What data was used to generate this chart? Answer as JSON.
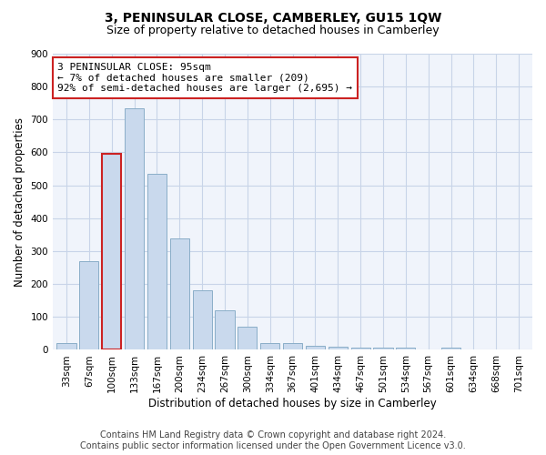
{
  "title": "3, PENINSULAR CLOSE, CAMBERLEY, GU15 1QW",
  "subtitle": "Size of property relative to detached houses in Camberley",
  "xlabel": "Distribution of detached houses by size in Camberley",
  "ylabel": "Number of detached properties",
  "categories": [
    "33sqm",
    "67sqm",
    "100sqm",
    "133sqm",
    "167sqm",
    "200sqm",
    "234sqm",
    "267sqm",
    "300sqm",
    "334sqm",
    "367sqm",
    "401sqm",
    "434sqm",
    "467sqm",
    "501sqm",
    "534sqm",
    "567sqm",
    "601sqm",
    "634sqm",
    "668sqm",
    "701sqm"
  ],
  "values": [
    20,
    270,
    595,
    735,
    535,
    340,
    180,
    120,
    70,
    22,
    20,
    12,
    10,
    8,
    7,
    6,
    0,
    8,
    0,
    0,
    0
  ],
  "bar_color": "#c9d9ed",
  "bar_edge_color": "#8aaec8",
  "highlight_bar_index": 2,
  "highlight_edge_color": "#cc2222",
  "annotation_line1": "3 PENINSULAR CLOSE: 95sqm",
  "annotation_line2": "← 7% of detached houses are smaller (209)",
  "annotation_line3": "92% of semi-detached houses are larger (2,695) →",
  "annotation_box_color": "white",
  "annotation_box_edge_color": "#cc2222",
  "ylim": [
    0,
    900
  ],
  "yticks": [
    0,
    100,
    200,
    300,
    400,
    500,
    600,
    700,
    800,
    900
  ],
  "footer_line1": "Contains HM Land Registry data © Crown copyright and database right 2024.",
  "footer_line2": "Contains public sector information licensed under the Open Government Licence v3.0.",
  "bg_color": "#f0f4fb",
  "grid_color": "#c8d4e8",
  "title_fontsize": 10,
  "subtitle_fontsize": 9,
  "axis_label_fontsize": 8.5,
  "tick_fontsize": 7.5,
  "annotation_fontsize": 8,
  "footer_fontsize": 7
}
